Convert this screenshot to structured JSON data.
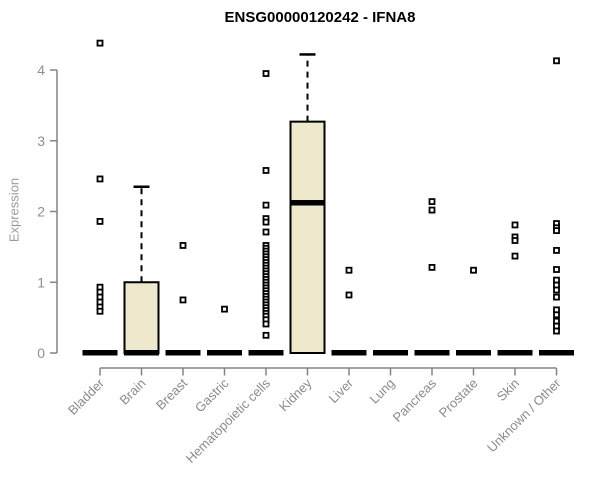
{
  "colors": {
    "box_fill": "#EEE8CD",
    "box_border": "#000000",
    "median": "#000000",
    "whisker": "#000000",
    "outlier_fill": "#ffffff",
    "outlier_border": "#000000",
    "axis": "#848484",
    "tick_label": "#8f8f8f",
    "category_label": "#8b8b8b",
    "title": "#000000",
    "ylabel": "#9a9a9a"
  },
  "chart_data": {
    "type": "boxplot",
    "title": "ENSG00000120242 - IFNA8",
    "xlabel": "",
    "ylabel": "Expression",
    "ylim": [
      0,
      4.5
    ],
    "yticks": [
      0,
      1,
      2,
      3,
      4
    ],
    "grid": false,
    "legend": false,
    "categories": [
      "Bladder",
      "Brain",
      "Breast",
      "Gastric",
      "Hematopoietic cells",
      "Kidney",
      "Liver",
      "Lung",
      "Pancreas",
      "Prostate",
      "Skin",
      "Unknown / Other"
    ],
    "series": [
      {
        "name": "Bladder",
        "q1": 0,
        "median": 0,
        "q3": 0,
        "whisker_low": 0,
        "whisker_high": 0,
        "outliers": [
          4.38,
          2.46,
          1.86,
          0.93,
          0.86,
          0.79,
          0.72,
          0.65,
          0.59
        ]
      },
      {
        "name": "Brain",
        "q1": 0,
        "median": 0,
        "q3": 1.0,
        "whisker_low": 0,
        "whisker_high": 2.35,
        "outliers": []
      },
      {
        "name": "Breast",
        "q1": 0,
        "median": 0,
        "q3": 0,
        "whisker_low": 0,
        "whisker_high": 0,
        "outliers": [
          1.52,
          0.75
        ]
      },
      {
        "name": "Gastric",
        "q1": 0,
        "median": 0,
        "q3": 0,
        "whisker_low": 0,
        "whisker_high": 0,
        "outliers": [
          0.62
        ]
      },
      {
        "name": "Hematopoietic cells",
        "q1": 0,
        "median": 0,
        "q3": 0,
        "whisker_low": 0,
        "whisker_high": 0,
        "outliers": [
          3.95,
          2.58,
          2.09,
          1.9,
          1.85,
          1.71,
          1.52,
          1.48,
          1.44,
          1.4,
          1.36,
          1.32,
          1.28,
          1.24,
          1.2,
          1.16,
          1.12,
          1.08,
          1.04,
          1.0,
          0.96,
          0.92,
          0.88,
          0.84,
          0.8,
          0.76,
          0.72,
          0.68,
          0.64,
          0.6,
          0.56,
          0.52,
          0.47,
          0.41,
          0.25
        ]
      },
      {
        "name": "Kidney",
        "q1": 0,
        "median": 2.12,
        "q3": 3.27,
        "whisker_low": 0,
        "whisker_high": 4.22,
        "outliers": []
      },
      {
        "name": "Liver",
        "q1": 0,
        "median": 0,
        "q3": 0,
        "whisker_low": 0,
        "whisker_high": 0,
        "outliers": [
          1.17,
          0.82
        ]
      },
      {
        "name": "Lung",
        "q1": 0,
        "median": 0,
        "q3": 0,
        "whisker_low": 0,
        "whisker_high": 0,
        "outliers": []
      },
      {
        "name": "Pancreas",
        "q1": 0,
        "median": 0,
        "q3": 0,
        "whisker_low": 0,
        "whisker_high": 0,
        "outliers": [
          2.14,
          2.02,
          1.21
        ]
      },
      {
        "name": "Prostate",
        "q1": 0,
        "median": 0,
        "q3": 0,
        "whisker_low": 0,
        "whisker_high": 0,
        "outliers": [
          1.17
        ]
      },
      {
        "name": "Skin",
        "q1": 0,
        "median": 0,
        "q3": 0,
        "whisker_low": 0,
        "whisker_high": 0,
        "outliers": [
          1.81,
          1.64,
          1.59,
          1.37
        ]
      },
      {
        "name": "Unknown / Other",
        "q1": 0,
        "median": 0,
        "q3": 0,
        "whisker_low": 0,
        "whisker_high": 0,
        "outliers": [
          4.13,
          1.83,
          1.77,
          1.73,
          1.45,
          1.18,
          1.03,
          0.96,
          0.89,
          0.79,
          0.61,
          0.54,
          0.45,
          0.38,
          0.31
        ]
      }
    ]
  }
}
